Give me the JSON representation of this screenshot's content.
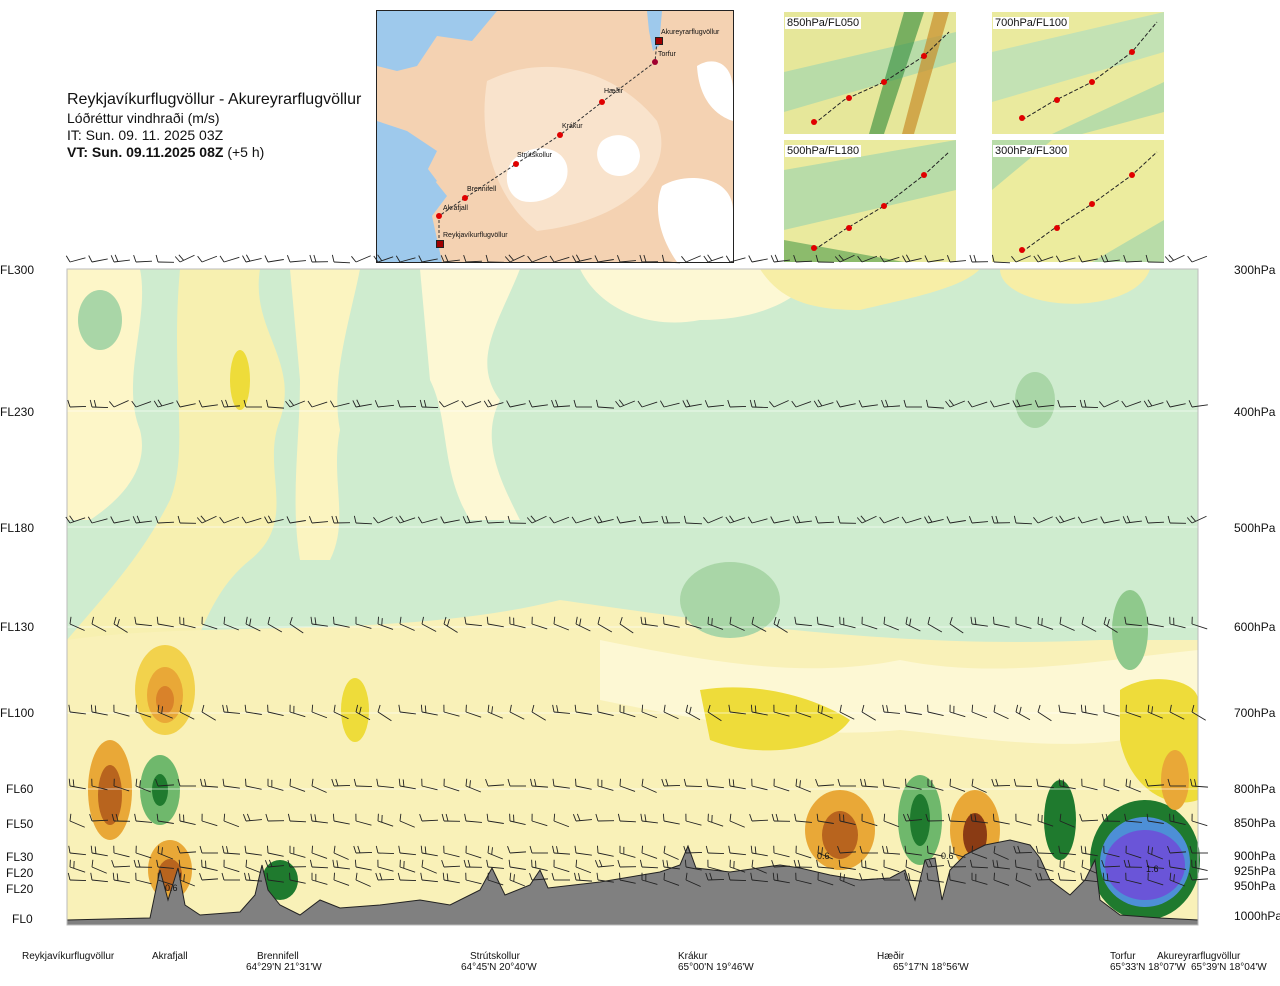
{
  "header": {
    "route": "Reykjavíkurflugvöllur - Akureyrarflugvöllur",
    "variable": "Lóðréttur vindhraði (m/s)",
    "issue_time": "IT: Sun. 09. 11. 2025 03Z",
    "valid_time": "VT: Sun. 09.11.2025 08Z",
    "valid_offset": "(+5 h)"
  },
  "route_map": {
    "waypoints": [
      {
        "label": "Akureyrarflugvöllur"
      },
      {
        "label": "Torfur"
      },
      {
        "label": "Hæðir"
      },
      {
        "label": "Krákur"
      },
      {
        "label": "Strútskollur"
      },
      {
        "label": "Brennifell"
      },
      {
        "label": "Akrafjall"
      },
      {
        "label": "Reykjavíkurflugvöllur"
      }
    ]
  },
  "level_maps": [
    {
      "label": "850hPa/FL050"
    },
    {
      "label": "700hPa/FL100"
    },
    {
      "label": "500hPa/FL180"
    },
    {
      "label": "300hPa/FL300"
    }
  ],
  "left_axis": [
    "FL300",
    "FL230",
    "FL180",
    "FL130",
    "FL100",
    "FL60",
    "FL50",
    "FL30",
    "FL20",
    "FL20",
    "FL0"
  ],
  "right_axis": [
    "300hPa",
    "400hPa",
    "500hPa",
    "600hPa",
    "700hPa",
    "800hPa",
    "850hPa",
    "900hPa",
    "925hPa",
    "950hPa",
    "1000hPa"
  ],
  "value_labels": [
    "0.6",
    "0.6",
    "0.6",
    "1.6"
  ],
  "bottom_locations": [
    {
      "name": "Reykjavíkurflugvöllur",
      "coord": ""
    },
    {
      "name": "Akrafjall",
      "coord": ""
    },
    {
      "name": "Brennifell",
      "coord": "64°29'N 21°31'W"
    },
    {
      "name": "Strútskollur",
      "coord": "64°45'N 20°40'W"
    },
    {
      "name": "Krákur",
      "coord": "65°00'N 19°46'W"
    },
    {
      "name": "Hæðir",
      "coord": "65°17'N 18°56'W"
    },
    {
      "name": "Torfur",
      "coord": "65°33'N 18°07'W"
    },
    {
      "name": "Akureyrarflugvöllur",
      "coord": "65°39'N 18°04'W"
    }
  ],
  "colors": {
    "ocean": "#9ec9ec",
    "land": "#f4d2b2",
    "terrain": "#808080",
    "route_point": "#e00000",
    "bg_green": "#cfeccf"
  }
}
